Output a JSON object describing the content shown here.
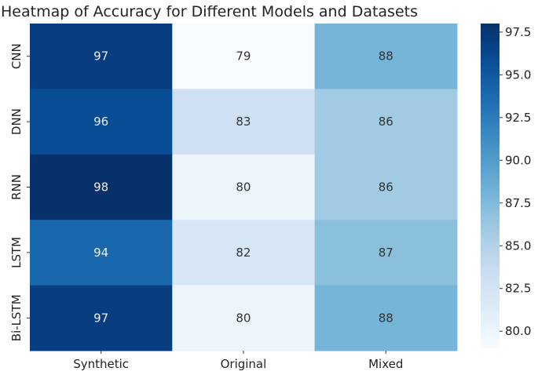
{
  "chart_data": {
    "type": "heatmap",
    "title": "Heatmap of Accuracy for Different Models and Datasets",
    "columns": [
      "Synthetic",
      "Original",
      "Mixed"
    ],
    "rows": [
      "CNN",
      "DNN",
      "RNN",
      "LSTM",
      "Bi-LSTM"
    ],
    "values": [
      [
        97,
        79,
        88
      ],
      [
        96,
        83,
        86
      ],
      [
        98,
        80,
        86
      ],
      [
        94,
        82,
        87
      ],
      [
        97,
        80,
        88
      ]
    ],
    "colormap": "Blues",
    "vmin": 79,
    "vmax": 98,
    "colorbar_ticks": [
      "80.0",
      "82.5",
      "85.0",
      "87.5",
      "90.0",
      "92.5",
      "95.0",
      "97.5"
    ],
    "colorbar_placement": "right",
    "annotations": true,
    "grid": false
  }
}
